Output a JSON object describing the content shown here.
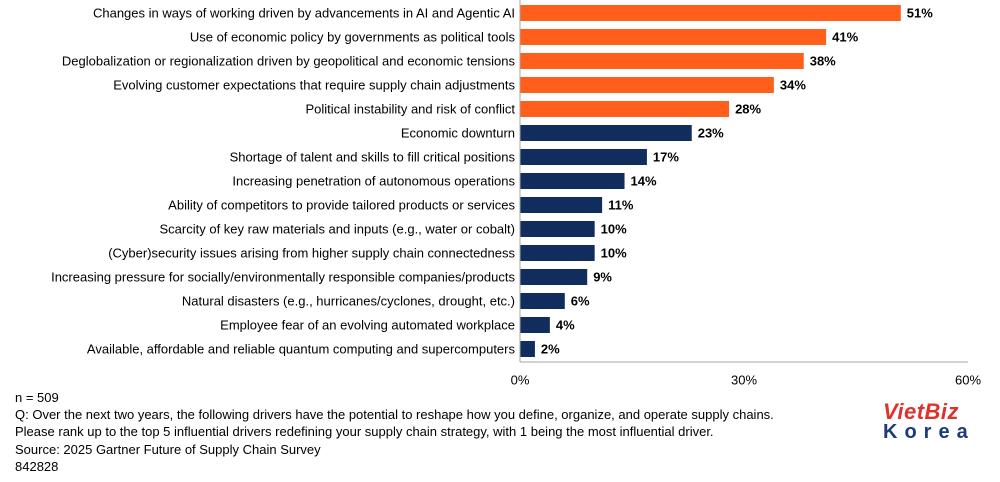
{
  "chart_data": {
    "type": "bar",
    "title": "",
    "xlabel": "",
    "ylabel": "",
    "categories": [
      "Changes in ways of working driven by advancements in AI and Agentic AI",
      "Use of economic policy by governments as political tools",
      "Deglobalization or regionalization driven by geopolitical and economic tensions",
      "Evolving customer expectations that require supply chain adjustments",
      "Political instability and risk of conflict",
      "Economic downturn",
      "Shortage of talent and skills to fill critical positions",
      "Increasing penetration of autonomous operations",
      "Ability of competitors to provide tailored products or services",
      "Scarcity of key raw materials and inputs (e.g., water or cobalt)",
      "(Cyber)security issues arising from higher supply chain connectedness",
      "Increasing pressure for socially/environmentally responsible companies/products",
      "Natural disasters (e.g., hurricanes/cyclones, drought, etc.)",
      "Employee fear of an evolving automated workplace",
      "Available, affordable and reliable quantum computing and supercomputers"
    ],
    "values": [
      51,
      41,
      38,
      34,
      28,
      23,
      17,
      14,
      11,
      10,
      10,
      9,
      6,
      4,
      2
    ],
    "value_suffix": "%",
    "highlight_top_n": 5,
    "colors": {
      "highlight": "#FF5F1A",
      "default": "#112D5E",
      "axis": "#A6A6A6"
    },
    "xlim": [
      0,
      60
    ],
    "xticks": [
      0,
      30,
      60
    ],
    "xtick_labels": [
      "0%",
      "30%",
      "60%"
    ],
    "grid": false
  },
  "footnote": {
    "sample": "n = 509",
    "question": "Q: Over the next two years, the following drivers have the potential to reshape how you define, organize, and operate supply chains.",
    "instruction": "Please rank up to the top 5 influential drivers redefining your supply chain strategy, with 1 being the most influential driver.",
    "source": "Source: 2025 Gartner Future of Supply Chain Survey",
    "id": "842828"
  },
  "logo": {
    "line1": "VietBiz",
    "line2": "Korea",
    "colors": {
      "line1": "#E2312B",
      "line2": "#1D3B7C"
    }
  }
}
